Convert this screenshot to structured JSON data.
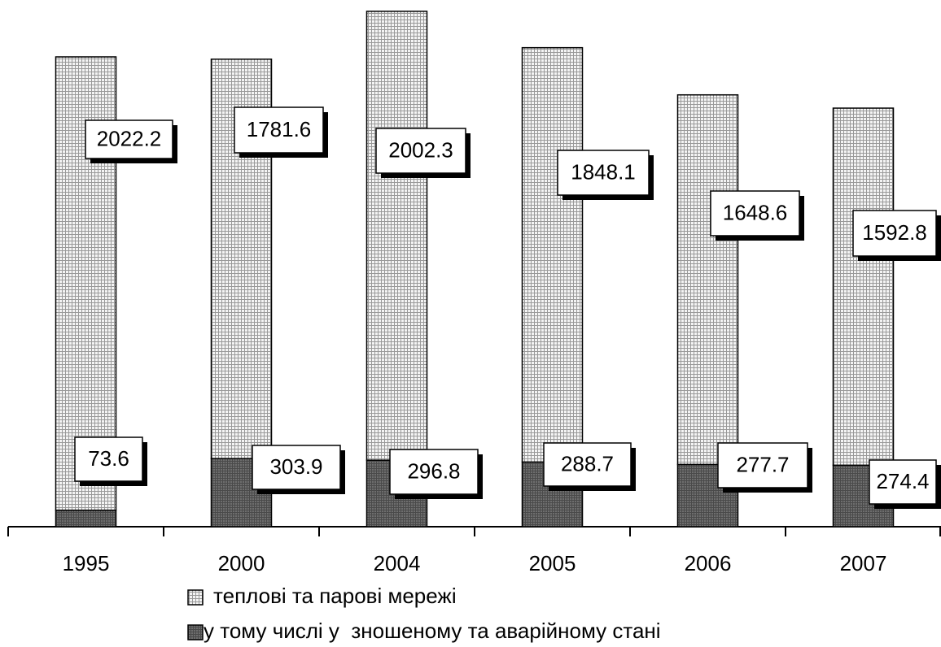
{
  "chart_data": {
    "type": "bar",
    "stacked": true,
    "categories": [
      "1995",
      "2000",
      "2004",
      "2005",
      "2006",
      "2007"
    ],
    "series": [
      {
        "name": "у тому числі у  зношеному та аварійному стані",
        "color": "#6e6e6e",
        "values": [
          73.6,
          303.9,
          296.8,
          288.7,
          277.7,
          274.4
        ]
      },
      {
        "name": "теплові та парові мережі",
        "color": "#e4e4e4",
        "values": [
          2022.2,
          1781.6,
          2002.3,
          1848.1,
          1648.6,
          1592.8
        ]
      }
    ]
  }
}
